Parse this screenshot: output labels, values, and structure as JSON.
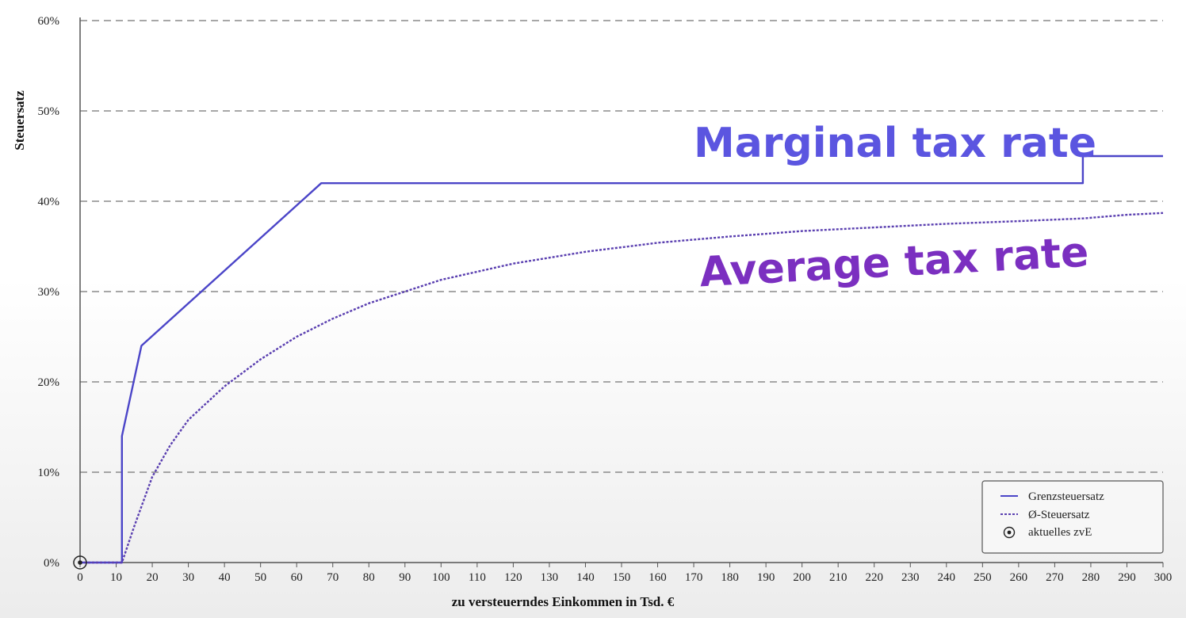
{
  "colors": {
    "marginal": "#4b45c8",
    "average": "#5a3fb0",
    "annot_marginal": "#5b55e0",
    "annot_average": "#7b2fc0",
    "grid": "#8a8a8a",
    "axis": "#555555"
  },
  "chart_data": {
    "type": "line",
    "title": "",
    "xlabel": "zu versteuerndes Einkommen in Tsd. €",
    "ylabel": "Steuersatz",
    "xlim": [
      0,
      300
    ],
    "ylim": [
      0,
      60
    ],
    "x_ticks": [
      0,
      10,
      20,
      30,
      40,
      50,
      60,
      70,
      80,
      90,
      100,
      110,
      120,
      130,
      140,
      150,
      160,
      170,
      180,
      190,
      200,
      210,
      220,
      230,
      240,
      250,
      260,
      270,
      280,
      290,
      300
    ],
    "y_ticks": [
      0,
      10,
      20,
      30,
      40,
      50,
      60
    ],
    "y_tick_labels": [
      "0%",
      "10%",
      "20%",
      "30%",
      "40%",
      "50%",
      "60%"
    ],
    "grid": "horizontal dashed",
    "legend_position": "bottom-right",
    "series": [
      {
        "name": "Grenzsteuersatz",
        "style": "solid",
        "x": [
          0,
          11.6,
          11.6,
          17,
          66.8,
          277.8,
          277.8,
          300
        ],
        "y": [
          0,
          0,
          14,
          24,
          42,
          42,
          45,
          45
        ]
      },
      {
        "name": "Ø-Steuersatz",
        "style": "dotted",
        "x": [
          0,
          11.6,
          15,
          20,
          25,
          30,
          40,
          50,
          60,
          70,
          80,
          90,
          100,
          120,
          140,
          160,
          180,
          200,
          220,
          240,
          260,
          277.8,
          290,
          300
        ],
        "y": [
          0,
          0,
          4,
          9.5,
          13,
          15.8,
          19.5,
          22.5,
          25,
          27,
          28.7,
          30,
          31.3,
          33.1,
          34.4,
          35.4,
          36.1,
          36.7,
          37.1,
          37.5,
          37.8,
          38.1,
          38.5,
          38.7
        ]
      }
    ],
    "current_marker": {
      "name": "aktuelles zvE",
      "x": 0,
      "y": 0
    },
    "annotations": {
      "marginal": "Marginal tax rate",
      "average": "Average tax rate"
    }
  }
}
